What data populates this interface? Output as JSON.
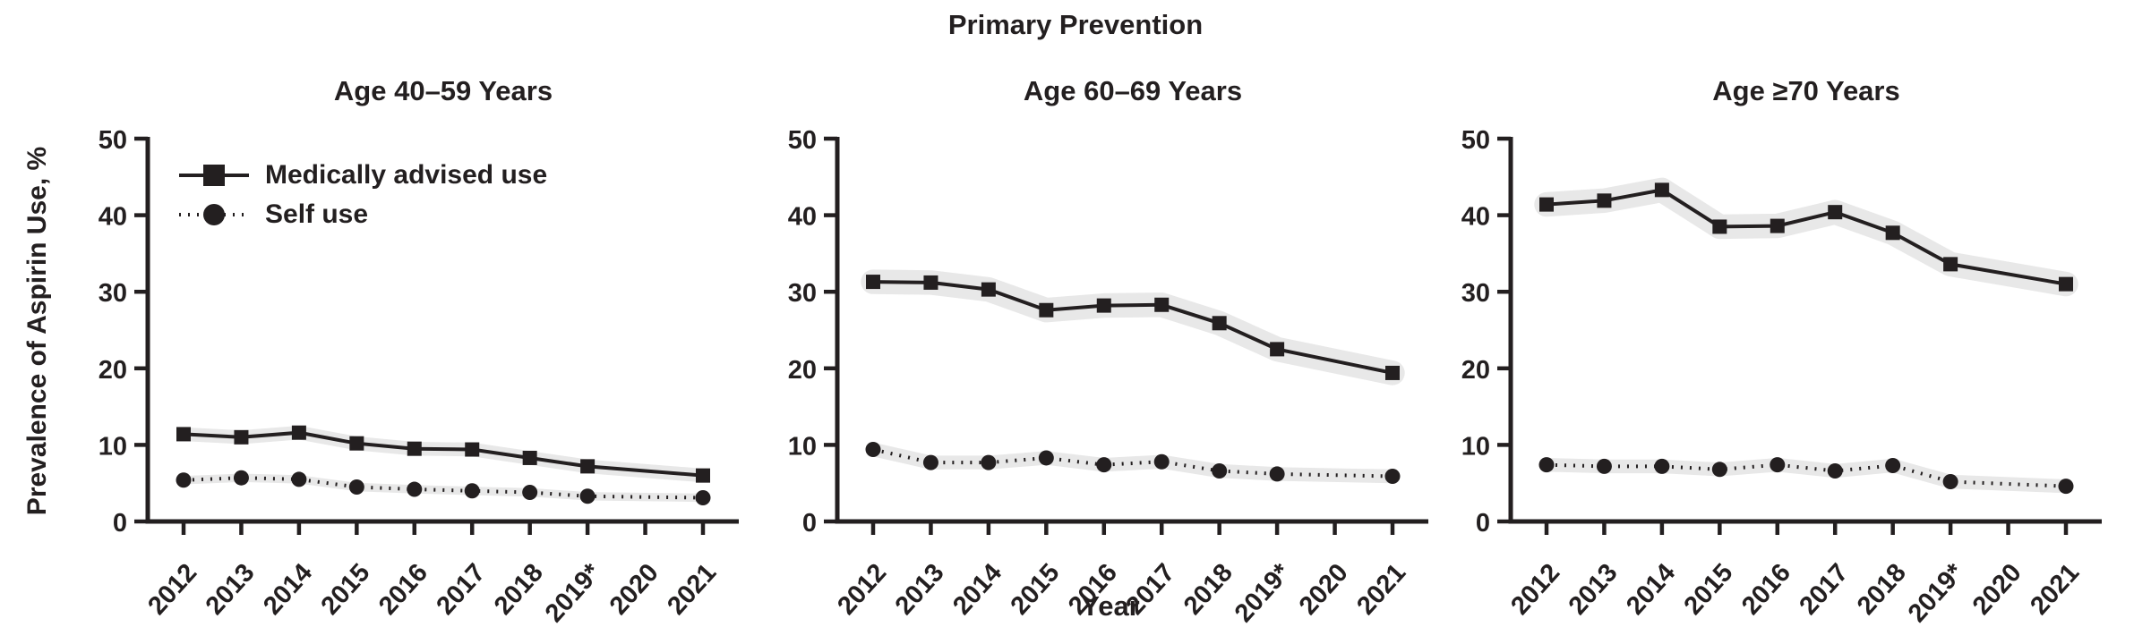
{
  "figure": {
    "title": "Primary Prevention",
    "x_axis_label": "Year",
    "y_axis_label": "Prevalence of Aspirin Use, %"
  },
  "colors": {
    "line": "#231f20",
    "band": "#e8e8e8",
    "text": "#231f20",
    "background": "#ffffff"
  },
  "legend": [
    {
      "label": "Medically advised use",
      "marker": "square",
      "line_style": "solid"
    },
    {
      "label": "Self use",
      "marker": "circle",
      "line_style": "dotted"
    }
  ],
  "chart_data": [
    {
      "type": "line",
      "title": "Age 40–59 Years",
      "categories": [
        "2012",
        "2013",
        "2014",
        "2015",
        "2016",
        "2017",
        "2018",
        "2019*",
        "2020",
        "2021"
      ],
      "ylim": [
        0,
        50
      ],
      "yticks": [
        0,
        10,
        20,
        30,
        40,
        50
      ],
      "grid": false,
      "note_no_data_year": "2020",
      "series": [
        {
          "name": "Medically advised use",
          "marker": "square",
          "line_style": "solid",
          "band_halfwidth": 0.9,
          "values": [
            11.4,
            11.0,
            11.6,
            10.2,
            9.5,
            9.4,
            8.3,
            7.2,
            null,
            6.0
          ]
        },
        {
          "name": "Self use",
          "marker": "circle",
          "line_style": "dotted",
          "band_halfwidth": 0.55,
          "values": [
            5.4,
            5.7,
            5.5,
            4.5,
            4.2,
            4.0,
            3.8,
            3.3,
            null,
            3.1
          ]
        }
      ]
    },
    {
      "type": "line",
      "title": "Age 60–69 Years",
      "categories": [
        "2012",
        "2013",
        "2014",
        "2015",
        "2016",
        "2017",
        "2018",
        "2019*",
        "2020",
        "2021"
      ],
      "ylim": [
        0,
        50
      ],
      "yticks": [
        0,
        10,
        20,
        30,
        40,
        50
      ],
      "grid": false,
      "note_no_data_year": "2020",
      "series": [
        {
          "name": "Medically advised use",
          "marker": "square",
          "line_style": "solid",
          "band_halfwidth": 1.6,
          "values": [
            31.3,
            31.2,
            30.3,
            27.6,
            28.2,
            28.3,
            25.9,
            22.5,
            null,
            19.4
          ]
        },
        {
          "name": "Self use",
          "marker": "circle",
          "line_style": "dotted",
          "band_halfwidth": 0.9,
          "values": [
            9.4,
            7.7,
            7.7,
            8.3,
            7.4,
            7.8,
            6.6,
            6.2,
            null,
            5.9
          ]
        }
      ]
    },
    {
      "type": "line",
      "title": "Age ≥70 Years",
      "categories": [
        "2012",
        "2013",
        "2014",
        "2015",
        "2016",
        "2017",
        "2018",
        "2019*",
        "2020",
        "2021"
      ],
      "ylim": [
        0,
        50
      ],
      "yticks": [
        0,
        10,
        20,
        30,
        40,
        50
      ],
      "grid": false,
      "note_no_data_year": "2020",
      "series": [
        {
          "name": "Medically advised use",
          "marker": "square",
          "line_style": "solid",
          "band_halfwidth": 1.6,
          "values": [
            41.4,
            41.9,
            43.3,
            38.5,
            38.6,
            40.4,
            37.7,
            33.6,
            null,
            31.0
          ]
        },
        {
          "name": "Self use",
          "marker": "circle",
          "line_style": "dotted",
          "band_halfwidth": 0.9,
          "values": [
            7.4,
            7.2,
            7.2,
            6.8,
            7.4,
            6.6,
            7.3,
            5.2,
            null,
            4.6
          ]
        }
      ]
    }
  ]
}
